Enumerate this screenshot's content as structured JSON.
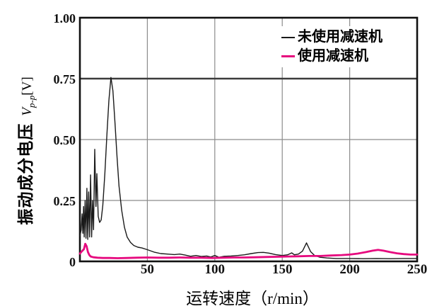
{
  "chart_data": {
    "type": "line",
    "title": "",
    "xlabel": "运转速度（r/min）",
    "ylabel_cn": "振动成分电压",
    "ylabel_sym": {
      "v": "V",
      "sub": "p-p",
      "unit": "[V]"
    },
    "xlim": [
      0,
      250
    ],
    "ylim": [
      0,
      1.0
    ],
    "x_ticks": [
      {
        "label": "50",
        "value": 50
      },
      {
        "label": "100",
        "value": 100
      },
      {
        "label": "150",
        "value": 150
      },
      {
        "label": "200",
        "value": 200
      },
      {
        "label": "250",
        "value": 250
      }
    ],
    "y_ticks": [
      {
        "label": "1.00",
        "value": 1.0
      },
      {
        "label": "0.75",
        "value": 0.75
      },
      {
        "label": "0.50",
        "value": 0.5
      },
      {
        "label": "0.25",
        "value": 0.25
      },
      {
        "label": "0",
        "value": 0
      }
    ],
    "grid": {
      "on": true,
      "color": "#8c8c8c",
      "emphasis_y": 0.75,
      "emphasis_color": "#3c3c3c"
    },
    "legend_position": "top-right-inside",
    "series": [
      {
        "name": "未使用减速机",
        "color": "#1a1a1a",
        "width": 1.4,
        "points": [
          [
            0,
            0.105
          ],
          [
            1,
            0.13
          ],
          [
            1.6,
            0.195
          ],
          [
            2.2,
            0.115
          ],
          [
            2.7,
            0.225
          ],
          [
            3.2,
            0.1
          ],
          [
            3.9,
            0.25
          ],
          [
            4.5,
            0.095
          ],
          [
            5.2,
            0.3
          ],
          [
            5.8,
            0.09
          ],
          [
            6.5,
            0.285
          ],
          [
            7.2,
            0.1
          ],
          [
            7.9,
            0.355
          ],
          [
            8.7,
            0.1
          ],
          [
            9.4,
            0.25
          ],
          [
            10.1,
            0.13
          ],
          [
            11.0,
            0.46
          ],
          [
            11.9,
            0.225
          ],
          [
            12.6,
            0.36
          ],
          [
            13.6,
            0.185
          ],
          [
            14.6,
            0.16
          ],
          [
            15.8,
            0.17
          ],
          [
            17,
            0.23
          ],
          [
            18.5,
            0.36
          ],
          [
            20,
            0.52
          ],
          [
            21.5,
            0.66
          ],
          [
            23,
            0.755
          ],
          [
            24.5,
            0.7
          ],
          [
            26,
            0.57
          ],
          [
            27.5,
            0.43
          ],
          [
            29,
            0.31
          ],
          [
            31,
            0.21
          ],
          [
            33,
            0.14
          ],
          [
            35,
            0.1
          ],
          [
            37.5,
            0.078
          ],
          [
            40,
            0.065
          ],
          [
            43,
            0.058
          ],
          [
            46,
            0.055
          ],
          [
            50,
            0.048
          ],
          [
            55,
            0.038
          ],
          [
            60,
            0.032
          ],
          [
            65,
            0.03
          ],
          [
            70,
            0.028
          ],
          [
            74,
            0.03
          ],
          [
            78,
            0.026
          ],
          [
            82,
            0.021
          ],
          [
            86,
            0.024
          ],
          [
            90,
            0.02
          ],
          [
            94,
            0.022
          ],
          [
            97,
            0.018
          ],
          [
            100,
            0.024
          ],
          [
            103,
            0.017
          ],
          [
            107,
            0.021
          ],
          [
            112,
            0.022
          ],
          [
            117,
            0.024
          ],
          [
            122,
            0.027
          ],
          [
            127,
            0.032
          ],
          [
            132,
            0.036
          ],
          [
            136,
            0.037
          ],
          [
            140,
            0.034
          ],
          [
            145,
            0.028
          ],
          [
            150,
            0.024
          ],
          [
            154,
            0.027
          ],
          [
            157,
            0.035
          ],
          [
            159,
            0.027
          ],
          [
            162,
            0.03
          ],
          [
            165,
            0.042
          ],
          [
            168,
            0.076
          ],
          [
            171,
            0.04
          ],
          [
            174,
            0.024
          ],
          [
            178,
            0.017
          ],
          [
            183,
            0.014
          ],
          [
            190,
            0.012
          ],
          [
            200,
            0.012
          ],
          [
            210,
            0.011
          ],
          [
            220,
            0.012
          ],
          [
            230,
            0.011
          ],
          [
            240,
            0.012
          ],
          [
            250,
            0.012
          ]
        ]
      },
      {
        "name": "使用减速机",
        "color": "#e6097e",
        "width": 2.8,
        "points": [
          [
            0,
            0.032
          ],
          [
            1.5,
            0.042
          ],
          [
            3,
            0.05
          ],
          [
            4,
            0.072
          ],
          [
            5,
            0.062
          ],
          [
            6,
            0.038
          ],
          [
            7,
            0.026
          ],
          [
            8,
            0.02
          ],
          [
            10,
            0.017
          ],
          [
            13,
            0.015
          ],
          [
            17,
            0.014
          ],
          [
            22,
            0.014
          ],
          [
            28,
            0.013
          ],
          [
            35,
            0.014
          ],
          [
            42,
            0.015
          ],
          [
            50,
            0.016
          ],
          [
            58,
            0.015
          ],
          [
            66,
            0.015
          ],
          [
            74,
            0.016
          ],
          [
            82,
            0.015
          ],
          [
            90,
            0.015
          ],
          [
            98,
            0.014
          ],
          [
            106,
            0.015
          ],
          [
            114,
            0.016
          ],
          [
            122,
            0.016
          ],
          [
            130,
            0.017
          ],
          [
            138,
            0.018
          ],
          [
            146,
            0.019
          ],
          [
            154,
            0.02
          ],
          [
            162,
            0.021
          ],
          [
            170,
            0.022
          ],
          [
            178,
            0.022
          ],
          [
            186,
            0.024
          ],
          [
            194,
            0.026
          ],
          [
            200,
            0.028
          ],
          [
            206,
            0.032
          ],
          [
            212,
            0.038
          ],
          [
            217,
            0.044
          ],
          [
            221,
            0.047
          ],
          [
            225,
            0.044
          ],
          [
            230,
            0.038
          ],
          [
            235,
            0.033
          ],
          [
            240,
            0.03
          ],
          [
            245,
            0.028
          ],
          [
            250,
            0.028
          ]
        ]
      }
    ],
    "frame_color": "#111111"
  }
}
